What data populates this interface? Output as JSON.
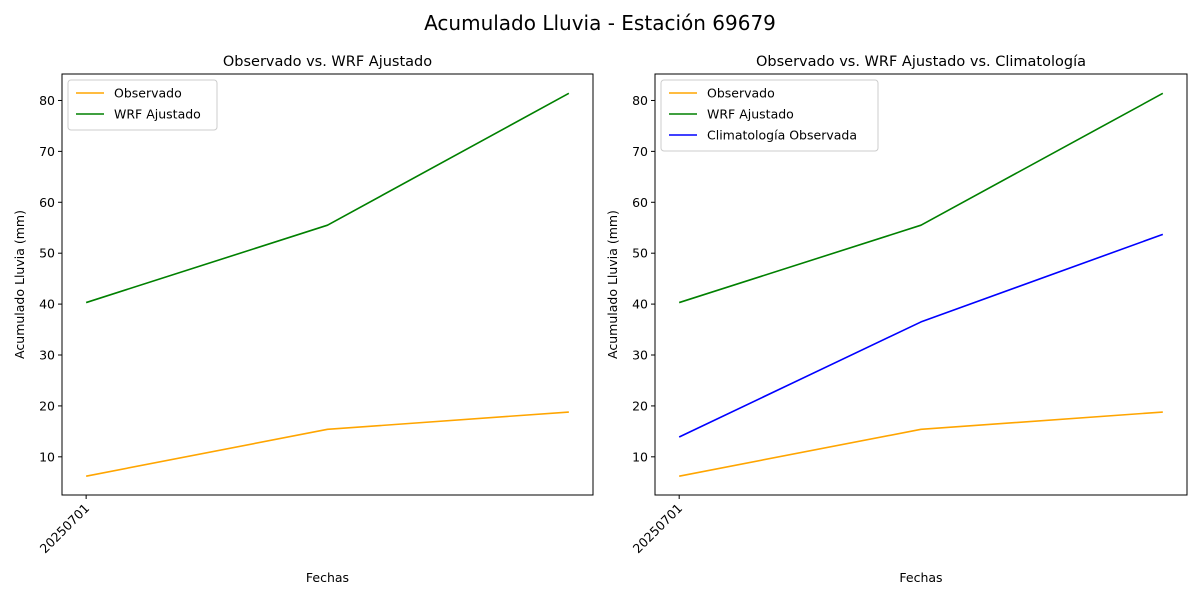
{
  "figure": {
    "suptitle": "Acumulado Lluvia - Estación 69679"
  },
  "chart_data": [
    {
      "type": "line",
      "title": "Observado vs. WRF Ajustado",
      "xlabel": "Fechas",
      "ylabel": "Acumulado Lluvia (mm)",
      "x": [
        0,
        1,
        2
      ],
      "x_tick_labels": [
        "20250701"
      ],
      "x_tick_rotation": 45,
      "ylim": [
        2.5,
        85.2
      ],
      "yticks": [
        10,
        20,
        30,
        40,
        50,
        60,
        70,
        80
      ],
      "legend": "top-left",
      "grid": false,
      "series": [
        {
          "name": "Observado",
          "color": "#ffa500",
          "values": [
            6.2,
            15.4,
            18.8
          ]
        },
        {
          "name": "WRF Ajustado",
          "color": "#008000",
          "values": [
            40.3,
            55.5,
            81.4
          ]
        }
      ]
    },
    {
      "type": "line",
      "title": "Observado vs. WRF Ajustado vs. Climatología",
      "xlabel": "Fechas",
      "ylabel": "Acumulado Lluvia (mm)",
      "x": [
        0,
        1,
        2
      ],
      "x_tick_labels": [
        "20250701"
      ],
      "x_tick_rotation": 45,
      "ylim": [
        2.5,
        85.2
      ],
      "yticks": [
        10,
        20,
        30,
        40,
        50,
        60,
        70,
        80
      ],
      "legend": "top-left",
      "grid": false,
      "series": [
        {
          "name": "Observado",
          "color": "#ffa500",
          "values": [
            6.2,
            15.4,
            18.8
          ]
        },
        {
          "name": "WRF Ajustado",
          "color": "#008000",
          "values": [
            40.3,
            55.5,
            81.4
          ]
        },
        {
          "name": "Climatología Observada",
          "color": "#0000ff",
          "values": [
            13.9,
            36.5,
            53.7
          ]
        }
      ]
    }
  ]
}
